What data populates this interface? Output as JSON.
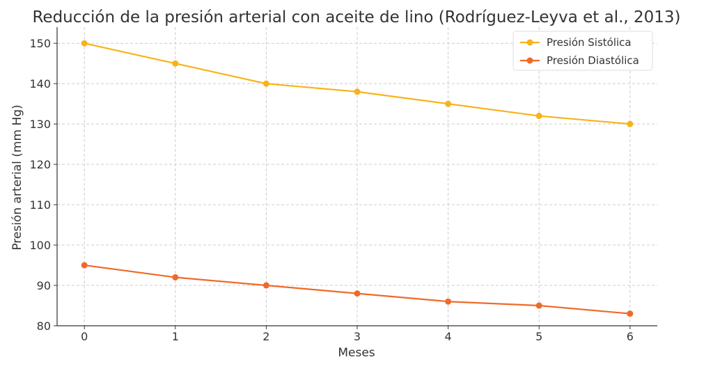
{
  "chart_data": {
    "type": "line",
    "title": "Reducción de la presión arterial con aceite de lino (Rodríguez-Leyva et al., 2013)",
    "xlabel": "Meses",
    "ylabel": "Presión arterial (mm Hg)",
    "x": [
      0,
      1,
      2,
      3,
      4,
      5,
      6
    ],
    "x_ticks": [
      "0",
      "1",
      "2",
      "3",
      "4",
      "5",
      "6"
    ],
    "y_ticks": [
      "80",
      "90",
      "100",
      "110",
      "120",
      "130",
      "140",
      "150"
    ],
    "xlim": [
      -0.3,
      6.3
    ],
    "ylim": [
      80,
      154
    ],
    "grid": true,
    "legend_position": "top-right",
    "series": [
      {
        "name": "Presión Sistólica",
        "color": "#f8b31a",
        "values": [
          150,
          145,
          140,
          138,
          135,
          132,
          130
        ]
      },
      {
        "name": "Presión Diastólica",
        "color": "#ef6a2a",
        "values": [
          95,
          92,
          90,
          88,
          86,
          85,
          83
        ]
      }
    ]
  }
}
